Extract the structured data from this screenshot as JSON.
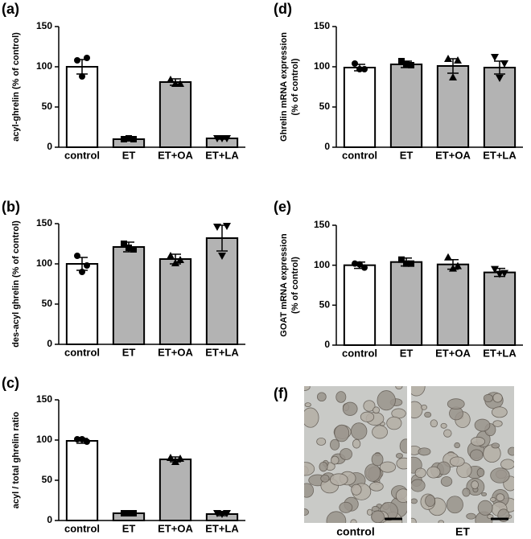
{
  "chart_data": [
    {
      "type": "bar",
      "panel_label": "(a)",
      "ylabel": [
        "acyl-ghrelin (% of control)"
      ],
      "categories": [
        "control",
        "ET",
        "ET+OA",
        "ET+LA"
      ],
      "values": [
        100,
        10,
        81,
        11
      ],
      "errors": [
        9,
        1,
        4,
        1
      ],
      "points": [
        [
          108,
          111,
          88
        ],
        [
          10,
          10,
          11
        ],
        [
          84,
          79,
          79
        ],
        [
          11,
          11,
          11
        ]
      ],
      "colors": [
        "#ffffff",
        "#b3b3b3",
        "#b3b3b3",
        "#b3b3b3"
      ],
      "markers": [
        "circle",
        "square",
        "triangle-up",
        "triangle-down"
      ],
      "ylim": [
        0,
        150
      ],
      "yticks": [
        0,
        50,
        100,
        150
      ]
    },
    {
      "type": "bar",
      "panel_label": "(b)",
      "ylabel": [
        "des-acyl ghrelin (% of control)"
      ],
      "categories": [
        "control",
        "ET",
        "ET+OA",
        "ET+LA"
      ],
      "values": [
        100,
        121,
        106,
        132
      ],
      "errors": [
        8,
        6,
        6,
        16
      ],
      "points": [
        [
          110,
          98,
          90
        ],
        [
          125,
          118,
          120
        ],
        [
          110,
          105,
          101
        ],
        [
          146,
          147,
          110
        ]
      ],
      "colors": [
        "#ffffff",
        "#b3b3b3",
        "#b3b3b3",
        "#b3b3b3"
      ],
      "markers": [
        "circle",
        "square",
        "triangle-up",
        "triangle-down"
      ],
      "ylim": [
        0,
        150
      ],
      "yticks": [
        0,
        50,
        100,
        150
      ]
    },
    {
      "type": "bar",
      "panel_label": "(c)",
      "ylabel": [
        "acyl / total ghrelin ratio"
      ],
      "categories": [
        "control",
        "ET",
        "ET+OA",
        "ET+LA"
      ],
      "values": [
        99,
        9,
        76,
        8
      ],
      "errors": [
        3,
        1,
        3,
        2
      ],
      "points": [
        [
          101,
          98,
          101
        ],
        [
          9,
          9,
          9
        ],
        [
          78,
          77,
          73
        ],
        [
          9,
          9,
          8
        ]
      ],
      "colors": [
        "#ffffff",
        "#b3b3b3",
        "#b3b3b3",
        "#b3b3b3"
      ],
      "markers": [
        "circle",
        "square",
        "triangle-up",
        "triangle-down"
      ],
      "ylim": [
        0,
        150
      ],
      "yticks": [
        0,
        50,
        100,
        150
      ]
    },
    {
      "type": "bar",
      "panel_label": "(d)",
      "ylabel": [
        "Ghrelin mRNA expression",
        "(% of control)"
      ],
      "categories": [
        "control",
        "ET",
        "ET+OA",
        "ET+LA"
      ],
      "values": [
        99,
        103,
        101,
        99
      ],
      "errors": [
        4,
        4,
        9,
        8
      ],
      "points": [
        [
          104,
          97,
          97
        ],
        [
          107,
          102,
          103
        ],
        [
          110,
          108,
          87
        ],
        [
          112,
          104,
          86
        ]
      ],
      "colors": [
        "#ffffff",
        "#b3b3b3",
        "#b3b3b3",
        "#b3b3b3"
      ],
      "markers": [
        "circle",
        "square",
        "triangle-up",
        "triangle-down"
      ],
      "ylim": [
        0,
        150
      ],
      "yticks": [
        0,
        50,
        100,
        150
      ]
    },
    {
      "type": "bar",
      "panel_label": "(e)",
      "ylabel": [
        "GOAT mRNA expression",
        "(% of control)"
      ],
      "categories": [
        "control",
        "ET",
        "ET+OA",
        "ET+LA"
      ],
      "values": [
        100,
        104,
        101,
        91
      ],
      "errors": [
        4,
        5,
        6,
        5
      ],
      "points": [
        [
          102,
          97,
          101
        ],
        [
          107,
          102,
          102
        ],
        [
          110,
          99,
          96
        ],
        [
          95,
          90,
          89
        ]
      ],
      "colors": [
        "#ffffff",
        "#b3b3b3",
        "#b3b3b3",
        "#b3b3b3"
      ],
      "markers": [
        "circle",
        "square",
        "triangle-up",
        "triangle-down"
      ],
      "ylim": [
        0,
        150
      ],
      "yticks": [
        0,
        50,
        100,
        150
      ]
    }
  ],
  "micrographs": {
    "panel_label": "(f)",
    "images": [
      {
        "label": "control"
      },
      {
        "label": "ET"
      }
    ]
  }
}
